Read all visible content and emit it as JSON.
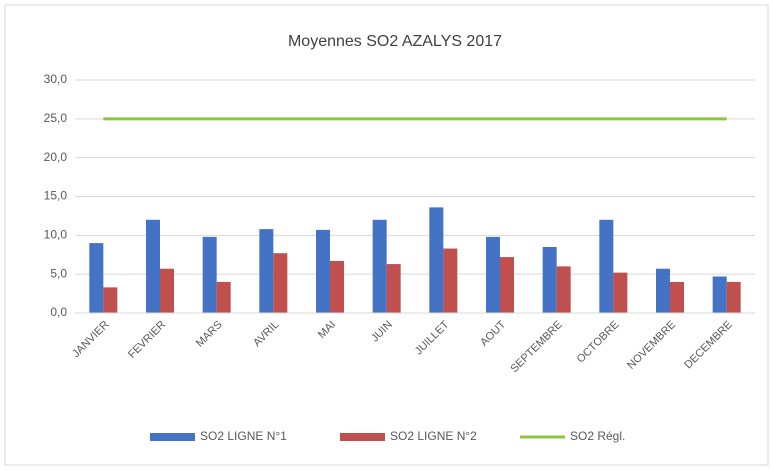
{
  "chart_data": {
    "type": "bar",
    "title": "Moyennes SO2 AZALYS 2017",
    "categories": [
      "JANVIER",
      "FEVRIER",
      "MARS",
      "AVRIL",
      "MAI",
      "JUIN",
      "JUILLET",
      "AOUT",
      "SEPTEMBRE",
      "OCTOBRE",
      "NOVEMBRE",
      "DECEMBRE"
    ],
    "series": [
      {
        "name": "SO2 LIGNE N°1",
        "color": "#4472c4",
        "values": [
          9.0,
          12.0,
          9.8,
          10.8,
          10.7,
          12.0,
          13.6,
          9.8,
          8.5,
          12.0,
          5.7,
          4.7
        ]
      },
      {
        "name": "SO2 LIGNE N°2",
        "color": "#c0504d",
        "values": [
          3.3,
          5.7,
          4.0,
          7.7,
          6.7,
          6.3,
          8.3,
          7.2,
          6.0,
          5.2,
          4.0,
          4.0
        ]
      },
      {
        "name": "SO2 Régl.",
        "color": "#8dc63f",
        "type": "line",
        "values": [
          25,
          25,
          25,
          25,
          25,
          25,
          25,
          25,
          25,
          25,
          25,
          25
        ]
      }
    ],
    "ylim": [
      0,
      30
    ],
    "yticks": [
      {
        "value": 0,
        "label": "0,0"
      },
      {
        "value": 5,
        "label": "5,0"
      },
      {
        "value": 10,
        "label": "10,0"
      },
      {
        "value": 15,
        "label": "15,0"
      },
      {
        "value": 20,
        "label": "20,0"
      },
      {
        "value": 25,
        "label": "25,0"
      },
      {
        "value": 30,
        "label": "30,0"
      }
    ],
    "grid": true,
    "legend": "bottom"
  }
}
